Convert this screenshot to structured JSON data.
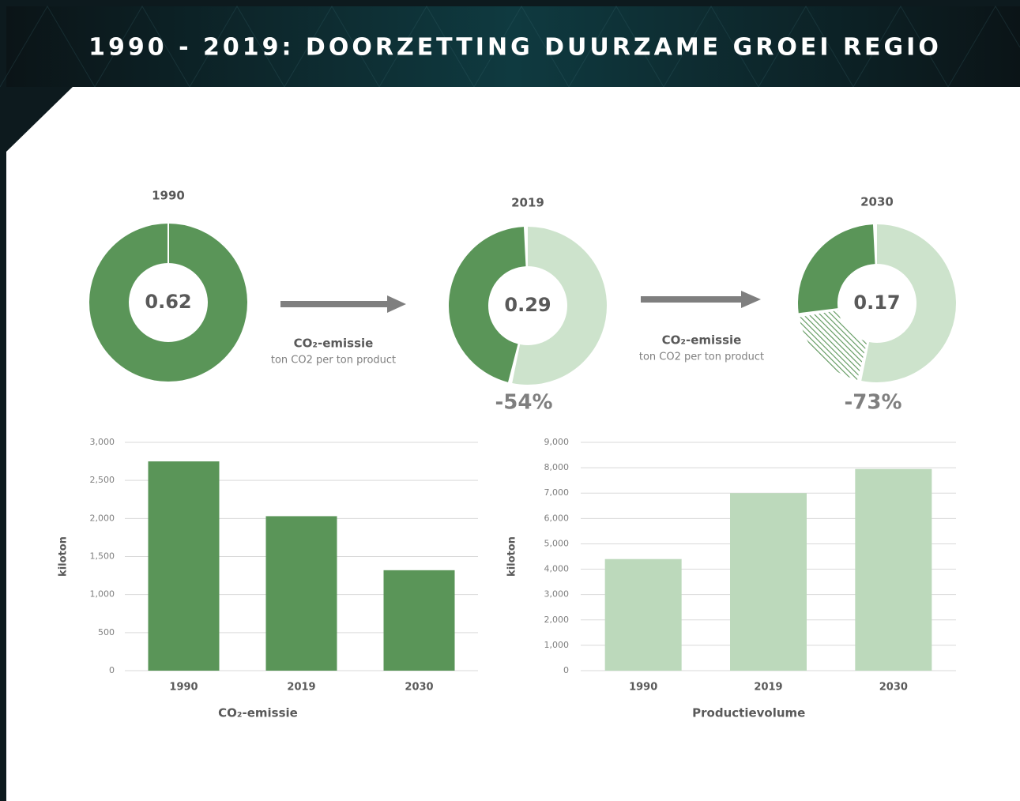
{
  "title": "1990 - 2019: DOORZETTING DUURZAME GROEI REGIO",
  "arrows": [
    {
      "label": "CO₂-emissie",
      "sublabel": "ton CO2 per ton product"
    },
    {
      "label": "CO₂-emissie",
      "sublabel": "ton CO2 per ton product"
    }
  ],
  "chart_data": [
    {
      "type": "donut",
      "title": "1990",
      "center": 0.62,
      "values": [
        100
      ],
      "colors": [
        "#5a9558"
      ],
      "fills": [
        "solid"
      ]
    },
    {
      "type": "donut",
      "title": "2019",
      "center": 0.29,
      "values": [
        54,
        46
      ],
      "colors": [
        "#cde3cc",
        "#5a9558"
      ],
      "fills": [
        "solid",
        "solid"
      ],
      "change": {
        "value": -54,
        "label": "-54%"
      }
    },
    {
      "type": "donut",
      "title": "2030",
      "center": 0.17,
      "values": [
        54,
        19,
        27
      ],
      "colors": [
        "#cde3cc",
        "#5a9558",
        "#5a9558"
      ],
      "fills": [
        "solid",
        "hatched",
        "solid"
      ],
      "change": {
        "value": -73,
        "label": "-73%"
      }
    },
    {
      "type": "bar",
      "xlabel": "CO₂-emissie",
      "ylabel": "kiloton",
      "categories": [
        "1990",
        "2019",
        "2030"
      ],
      "values": [
        2750,
        2030,
        1320
      ],
      "color": "#5a9558",
      "ylim": [
        0,
        3000
      ],
      "yticks": [
        0,
        500,
        {
          "value": 1000,
          "label": "1,000"
        },
        {
          "value": 1500,
          "label": "1,500"
        },
        {
          "value": 2000,
          "label": "2,000"
        },
        {
          "value": 2500,
          "label": "2,500"
        },
        {
          "value": 3000,
          "label": "3,000"
        }
      ],
      "grid": true
    },
    {
      "type": "bar",
      "xlabel": "Productievolume",
      "ylabel": "kiloton",
      "categories": [
        "1990",
        "2019",
        "2030"
      ],
      "values": [
        4400,
        7000,
        7950
      ],
      "color": "#bcd9bb",
      "ylim": [
        0,
        9000
      ],
      "yticks": [
        0,
        {
          "value": 1000,
          "label": "1,000"
        },
        {
          "value": 2000,
          "label": "2,000"
        },
        {
          "value": 3000,
          "label": "3,000"
        },
        {
          "value": 4000,
          "label": "4,000"
        },
        {
          "value": 5000,
          "label": "5,000"
        },
        {
          "value": 6000,
          "label": "6,000"
        },
        {
          "value": 7000,
          "label": "7,000"
        },
        {
          "value": 8000,
          "label": "8,000"
        },
        {
          "value": 9000,
          "label": "9,000"
        }
      ],
      "grid": true
    }
  ]
}
